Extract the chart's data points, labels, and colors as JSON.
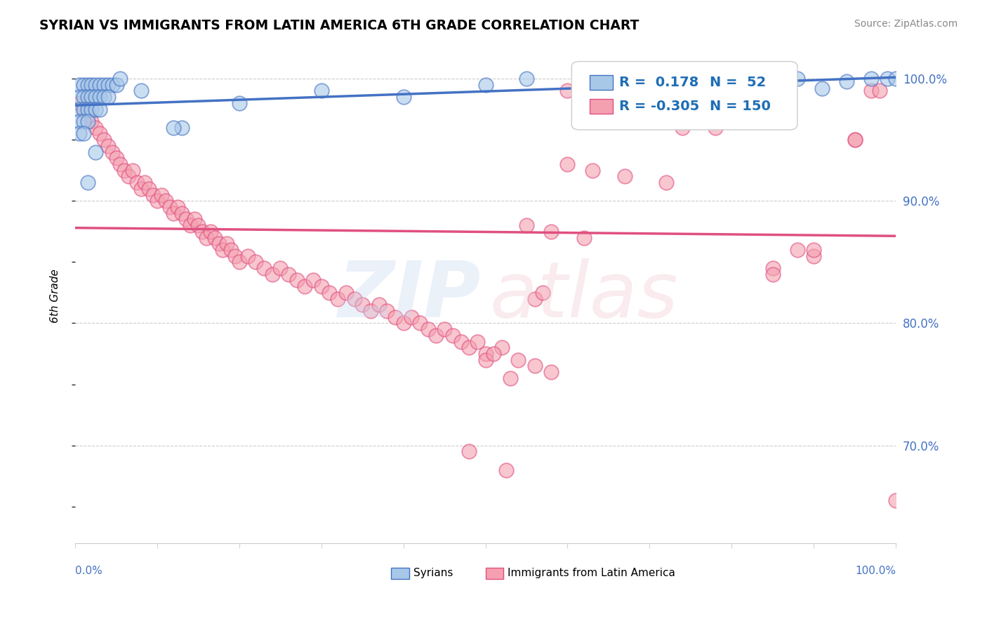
{
  "title": "SYRIAN VS IMMIGRANTS FROM LATIN AMERICA 6TH GRADE CORRELATION CHART",
  "source": "Source: ZipAtlas.com",
  "ylabel": "6th Grade",
  "R_blue": 0.178,
  "N_blue": 52,
  "R_pink": -0.305,
  "N_pink": 150,
  "blue_color": "#a8c8e8",
  "pink_color": "#f4a0b0",
  "blue_line_color": "#4472c4",
  "pink_line_color": "#e05080",
  "legend_R_color": "#1f6eb5",
  "blue_dots_x": [
    0.5,
    1.0,
    1.5,
    2.0,
    2.5,
    3.0,
    3.5,
    4.0,
    4.5,
    5.0,
    0.5,
    1.0,
    1.5,
    2.0,
    2.5,
    3.0,
    3.5,
    4.0,
    0.5,
    1.0,
    1.5,
    2.0,
    2.5,
    3.0,
    0.5,
    1.0,
    1.5,
    0.5,
    1.0,
    2.5,
    13.0,
    1.5,
    55.0,
    62.0,
    68.0,
    75.0,
    80.0,
    85.0,
    88.0,
    91.0,
    94.0,
    97.0,
    99.0,
    100.0,
    5.5,
    8.0,
    12.0,
    20.0,
    30.0,
    40.0,
    50.0
  ],
  "blue_dots_y": [
    99.5,
    99.5,
    99.5,
    99.5,
    99.5,
    99.5,
    99.5,
    99.5,
    99.5,
    99.5,
    98.5,
    98.5,
    98.5,
    98.5,
    98.5,
    98.5,
    98.5,
    98.5,
    97.5,
    97.5,
    97.5,
    97.5,
    97.5,
    97.5,
    96.5,
    96.5,
    96.5,
    95.5,
    95.5,
    94.0,
    96.0,
    91.5,
    100.0,
    99.0,
    99.5,
    100.0,
    99.8,
    99.5,
    100.0,
    99.2,
    99.8,
    100.0,
    100.0,
    100.0,
    100.0,
    99.0,
    96.0,
    98.0,
    99.0,
    98.5,
    99.5
  ],
  "pink_dots_x": [
    0.5,
    1.0,
    1.5,
    2.0,
    2.5,
    3.0,
    3.5,
    4.0,
    4.5,
    5.0,
    5.5,
    6.0,
    6.5,
    7.0,
    7.5,
    8.0,
    8.5,
    9.0,
    9.5,
    10.0,
    10.5,
    11.0,
    11.5,
    12.0,
    12.5,
    13.0,
    13.5,
    14.0,
    14.5,
    15.0,
    15.5,
    16.0,
    16.5,
    17.0,
    17.5,
    18.0,
    18.5,
    19.0,
    19.5,
    20.0,
    21.0,
    22.0,
    23.0,
    24.0,
    25.0,
    26.0,
    27.0,
    28.0,
    29.0,
    30.0,
    31.0,
    32.0,
    33.0,
    34.0,
    35.0,
    36.0,
    37.0,
    38.0,
    39.0,
    40.0,
    41.0,
    42.0,
    43.0,
    44.0,
    45.0,
    46.0,
    47.0,
    48.0,
    49.0,
    50.0,
    52.0,
    54.0,
    56.0,
    58.0,
    60.0,
    62.0,
    64.0,
    66.0,
    68.0,
    70.0,
    72.0,
    74.0,
    76.0,
    78.0,
    80.0,
    85.0,
    88.0,
    90.0,
    50.0,
    51.0,
    56.0,
    57.0,
    95.0,
    97.0,
    100.0,
    48.0,
    52.5,
    53.0,
    62.0,
    65.0,
    70.0,
    75.0,
    80.0,
    85.0,
    90.0,
    95.0,
    98.0,
    60.0,
    63.0,
    67.0,
    72.0,
    55.0,
    58.0,
    62.0
  ],
  "pink_dots_y": [
    98.0,
    97.5,
    97.0,
    96.5,
    96.0,
    95.5,
    95.0,
    94.5,
    94.0,
    93.5,
    93.0,
    92.5,
    92.0,
    92.5,
    91.5,
    91.0,
    91.5,
    91.0,
    90.5,
    90.0,
    90.5,
    90.0,
    89.5,
    89.0,
    89.5,
    89.0,
    88.5,
    88.0,
    88.5,
    88.0,
    87.5,
    87.0,
    87.5,
    87.0,
    86.5,
    86.0,
    86.5,
    86.0,
    85.5,
    85.0,
    85.5,
    85.0,
    84.5,
    84.0,
    84.5,
    84.0,
    83.5,
    83.0,
    83.5,
    83.0,
    82.5,
    82.0,
    82.5,
    82.0,
    81.5,
    81.0,
    81.5,
    81.0,
    80.5,
    80.0,
    80.5,
    80.0,
    79.5,
    79.0,
    79.5,
    79.0,
    78.5,
    78.0,
    78.5,
    77.5,
    78.0,
    77.0,
    76.5,
    76.0,
    99.0,
    98.5,
    97.5,
    97.0,
    97.5,
    97.0,
    96.5,
    96.0,
    96.5,
    96.0,
    97.0,
    84.5,
    86.0,
    85.5,
    77.0,
    77.5,
    82.0,
    82.5,
    95.0,
    99.0,
    65.5,
    69.5,
    68.0,
    75.5,
    98.0,
    97.0,
    97.5,
    96.5,
    97.5,
    84.0,
    86.0,
    95.0,
    99.0,
    93.0,
    92.5,
    92.0,
    91.5,
    88.0,
    87.5,
    87.0
  ]
}
